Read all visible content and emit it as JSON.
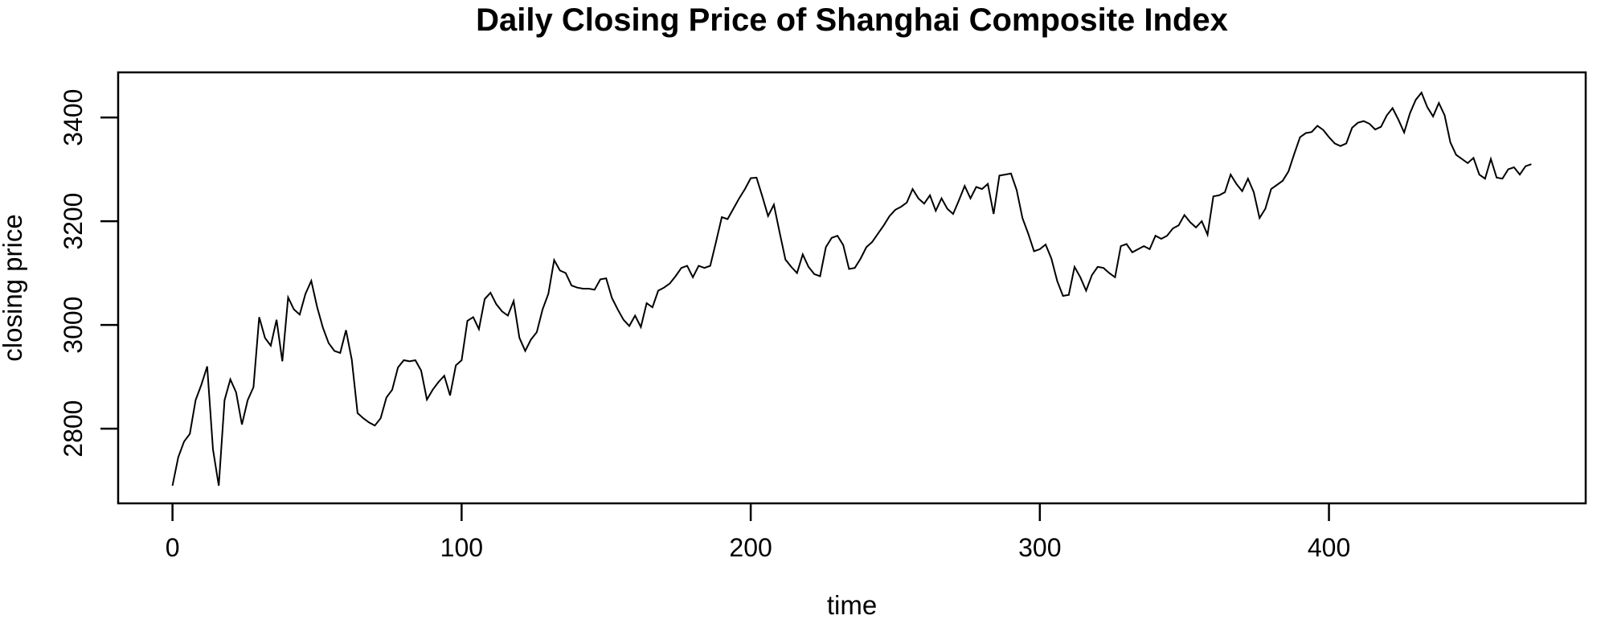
{
  "chart_data": {
    "type": "line",
    "title": "Daily Closing Price of Shanghai Composite Index",
    "xlabel": "time",
    "ylabel": "closing price",
    "line_color": "#000000",
    "background_color": "#ffffff",
    "grid": false,
    "legend": "none",
    "xticks": [
      0,
      100,
      200,
      300,
      400
    ],
    "yticks": [
      2800,
      3000,
      3200,
      3400
    ],
    "xlim_extended": [
      -18.8,
      488.8
    ],
    "ylim_extended": [
      2656,
      3487
    ],
    "x_range_data": [
      0,
      470
    ],
    "y_range_data": [
      2690,
      3448
    ],
    "series": [
      {
        "name": "closing price",
        "x_start": 0,
        "x_step": 2,
        "values": [
          2690,
          2745,
          2775,
          2790,
          2855,
          2885,
          2920,
          2760,
          2690,
          2855,
          2895,
          2870,
          2808,
          2855,
          2880,
          3015,
          2975,
          2960,
          3010,
          2930,
          3053,
          3030,
          3020,
          3060,
          3085,
          3035,
          2995,
          2965,
          2950,
          2946,
          2990,
          2933,
          2830,
          2820,
          2812,
          2806,
          2820,
          2860,
          2875,
          2918,
          2932,
          2930,
          2932,
          2912,
          2856,
          2875,
          2890,
          2902,
          2864,
          2922,
          2932,
          3008,
          3015,
          2992,
          3050,
          3062,
          3040,
          3026,
          3018,
          3046,
          2975,
          2950,
          2972,
          2986,
          3030,
          3060,
          3125,
          3105,
          3100,
          3076,
          3072,
          3070,
          3070,
          3068,
          3088,
          3090,
          3052,
          3030,
          3010,
          2998,
          3018,
          2996,
          3042,
          3034,
          3066,
          3072,
          3080,
          3094,
          3110,
          3114,
          3092,
          3114,
          3110,
          3114,
          3160,
          3208,
          3204,
          3224,
          3244,
          3262,
          3283,
          3284,
          3248,
          3210,
          3232,
          3178,
          3126,
          3112,
          3100,
          3136,
          3112,
          3098,
          3094,
          3150,
          3168,
          3172,
          3154,
          3108,
          3110,
          3128,
          3150,
          3160,
          3176,
          3192,
          3210,
          3222,
          3228,
          3236,
          3262,
          3244,
          3234,
          3250,
          3220,
          3244,
          3224,
          3214,
          3240,
          3268,
          3244,
          3266,
          3262,
          3272,
          3214,
          3288,
          3290,
          3292,
          3260,
          3206,
          3176,
          3142,
          3146,
          3155,
          3128,
          3085,
          3056,
          3058,
          3112,
          3092,
          3066,
          3096,
          3112,
          3110,
          3100,
          3092,
          3152,
          3156,
          3140,
          3146,
          3152,
          3146,
          3172,
          3166,
          3172,
          3186,
          3192,
          3212,
          3198,
          3188,
          3200,
          3174,
          3248,
          3250,
          3256,
          3290,
          3272,
          3258,
          3282,
          3256,
          3206,
          3224,
          3262,
          3270,
          3278,
          3296,
          3330,
          3362,
          3370,
          3372,
          3384,
          3376,
          3362,
          3350,
          3345,
          3350,
          3380,
          3390,
          3393,
          3388,
          3377,
          3382,
          3404,
          3418,
          3396,
          3371,
          3408,
          3434,
          3448,
          3420,
          3402,
          3428,
          3404,
          3352,
          3328,
          3320,
          3312,
          3322,
          3290,
          3282,
          3320,
          3284,
          3282,
          3300,
          3304,
          3290,
          3306,
          3310
        ]
      }
    ]
  }
}
